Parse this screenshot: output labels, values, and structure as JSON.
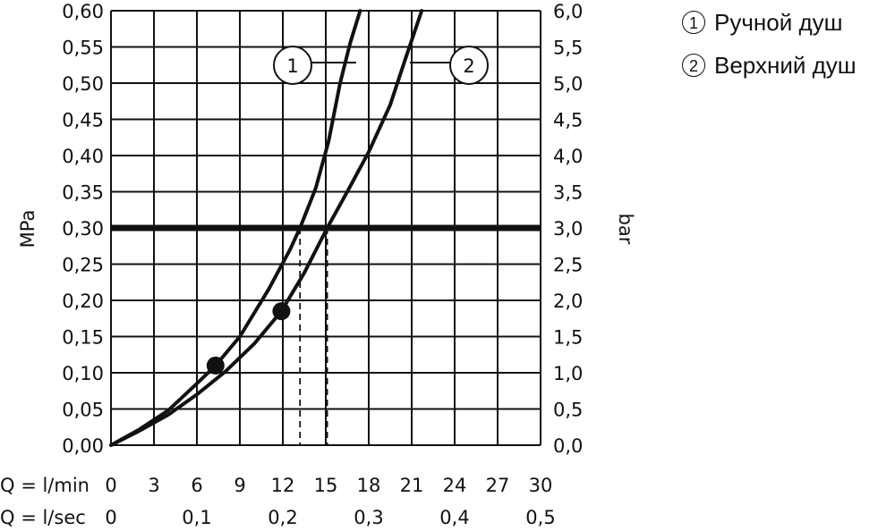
{
  "chart_data": {
    "type": "line",
    "left_axis": {
      "label": "MPa",
      "ticks": [
        "0,00",
        "0,05",
        "0,10",
        "0,15",
        "0,20",
        "0,25",
        "0,30",
        "0,35",
        "0,40",
        "0,45",
        "0,50",
        "0,55",
        "0,60"
      ],
      "range": [
        0,
        0.6
      ]
    },
    "right_axis": {
      "label": "bar",
      "ticks": [
        "0,0",
        "0,5",
        "1,0",
        "1,5",
        "2,0",
        "2,5",
        "3,0",
        "3,5",
        "4,0",
        "4,5",
        "5,0",
        "5,5",
        "6,0"
      ],
      "range": [
        0,
        6
      ]
    },
    "x_axis": {
      "range": [
        0,
        30
      ],
      "min_label": "Q = l/min",
      "min_ticks": [
        0,
        3,
        6,
        9,
        12,
        15,
        18,
        21,
        24,
        27,
        30
      ],
      "sec_label": "Q = l/sec",
      "sec_ticks": [
        {
          "value": 0,
          "label": "0"
        },
        {
          "value": 6,
          "label": "0,1"
        },
        {
          "value": 12,
          "label": "0,2"
        },
        {
          "value": 18,
          "label": "0,3"
        },
        {
          "value": 24,
          "label": "0,4"
        },
        {
          "value": 30,
          "label": "0,5"
        }
      ]
    },
    "grid": true,
    "reference_line": {
      "y": 0.3
    },
    "series": [
      {
        "name": "1",
        "x": [
          0,
          2,
          4,
          6,
          7.3,
          9,
          11,
          12.5,
          13.2,
          14.3,
          15.2,
          16.0,
          16.7,
          17.4
        ],
        "y": [
          0,
          0.022,
          0.048,
          0.085,
          0.11,
          0.15,
          0.215,
          0.27,
          0.3,
          0.355,
          0.42,
          0.5,
          0.555,
          0.6
        ],
        "marker": {
          "x": 7.3,
          "y": 0.11
        },
        "drop_x": 13.2
      },
      {
        "name": "2",
        "x": [
          0,
          2,
          4,
          6,
          8,
          10,
          11.9,
          13.5,
          15.1,
          16.5,
          18,
          19.5,
          20.5,
          21.7
        ],
        "y": [
          0,
          0.02,
          0.042,
          0.07,
          0.102,
          0.14,
          0.185,
          0.238,
          0.3,
          0.35,
          0.405,
          0.47,
          0.53,
          0.6
        ],
        "marker": {
          "x": 11.9,
          "y": 0.185
        },
        "drop_x": 15.1
      }
    ]
  },
  "legend": {
    "items": [
      {
        "num": "1",
        "label": "Ручной душ"
      },
      {
        "num": "2",
        "label": "Верхний душ"
      }
    ]
  }
}
